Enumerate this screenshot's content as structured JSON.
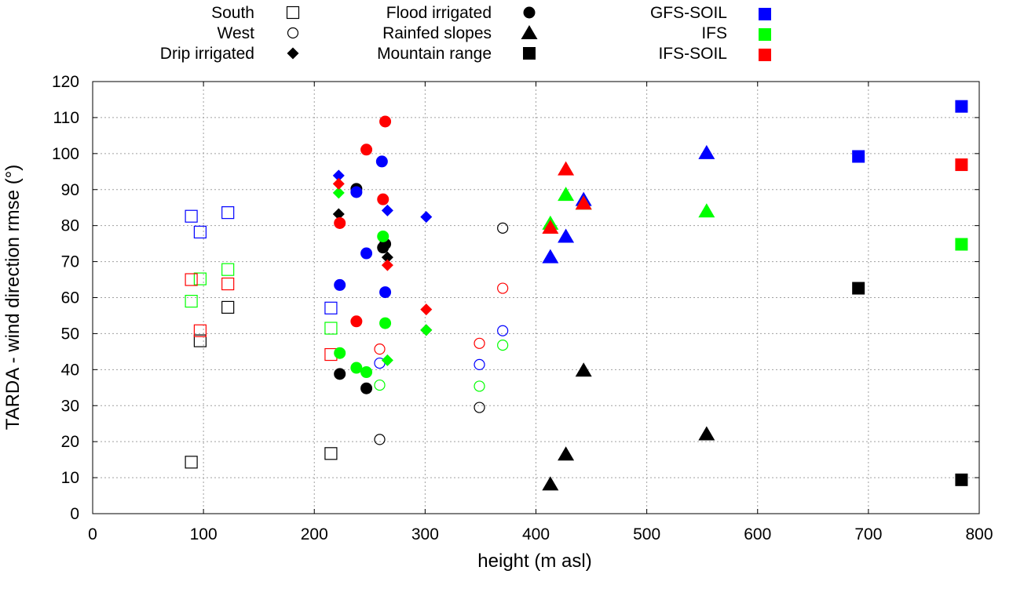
{
  "chart_data": {
    "type": "scatter",
    "xlabel": "height (m asl)",
    "ylabel": "TARDA - wind direction rmse (°)",
    "xlim": [
      0,
      800
    ],
    "ylim": [
      0,
      120
    ],
    "xticks": [
      0,
      100,
      200,
      300,
      400,
      500,
      600,
      700,
      800
    ],
    "yticks": [
      0,
      10,
      20,
      30,
      40,
      50,
      60,
      70,
      80,
      90,
      100,
      110,
      120
    ],
    "grid": true,
    "shape_legend": [
      {
        "label": "South",
        "marker": "open-square"
      },
      {
        "label": "West",
        "marker": "open-circle"
      },
      {
        "label": "Drip irrigated",
        "marker": "diamond"
      },
      {
        "label": "Flood irrigated",
        "marker": "circle"
      },
      {
        "label": "Rainfed slopes",
        "marker": "triangle"
      },
      {
        "label": "Mountain range",
        "marker": "square"
      }
    ],
    "color_legend": [
      {
        "label": "GFS-SOIL",
        "color": "#0000ff"
      },
      {
        "label": "IFS",
        "color": "#00ff00"
      },
      {
        "label": "IFS-SOIL",
        "color": "#ff0000"
      }
    ],
    "series": [
      {
        "name": "South - TARDA",
        "marker": "open-square",
        "color": "#000000",
        "points": [
          [
            89,
            14.3
          ],
          [
            97,
            48
          ],
          [
            122,
            57.3
          ],
          [
            215,
            16.7
          ]
        ]
      },
      {
        "name": "South - GFS-SOIL",
        "marker": "open-square",
        "color": "#0000ff",
        "points": [
          [
            89,
            82.6
          ],
          [
            97,
            78.2
          ],
          [
            122,
            83.6
          ],
          [
            215,
            57.1
          ]
        ]
      },
      {
        "name": "South - IFS",
        "marker": "open-square",
        "color": "#00ff00",
        "points": [
          [
            89,
            59
          ],
          [
            97,
            65.2
          ],
          [
            122,
            67.8
          ],
          [
            215,
            51.5
          ]
        ]
      },
      {
        "name": "South - IFS-SOIL",
        "marker": "open-square",
        "color": "#ff0000",
        "points": [
          [
            89,
            65
          ],
          [
            97,
            50.8
          ],
          [
            122,
            63.8
          ],
          [
            215,
            44.2
          ]
        ]
      },
      {
        "name": "West - TARDA",
        "marker": "open-circle",
        "color": "#000000",
        "points": [
          [
            259,
            20.6
          ],
          [
            349,
            29.5
          ],
          [
            370,
            79.3
          ]
        ]
      },
      {
        "name": "West - GFS-SOIL",
        "marker": "open-circle",
        "color": "#0000ff",
        "points": [
          [
            259,
            41.8
          ],
          [
            349,
            41.4
          ],
          [
            370,
            50.8
          ]
        ]
      },
      {
        "name": "West - IFS",
        "marker": "open-circle",
        "color": "#00ff00",
        "points": [
          [
            259,
            35.7
          ],
          [
            349,
            35.4
          ],
          [
            370,
            46.8
          ]
        ]
      },
      {
        "name": "West - IFS-SOIL",
        "marker": "open-circle",
        "color": "#ff0000",
        "points": [
          [
            259,
            45.7
          ],
          [
            349,
            47.3
          ],
          [
            370,
            62.6
          ]
        ]
      },
      {
        "name": "Drip irrigated - TARDA",
        "marker": "diamond",
        "color": "#000000",
        "points": [
          [
            222,
            83.2
          ],
          [
            266,
            71.2
          ],
          [
            301,
            51
          ]
        ]
      },
      {
        "name": "Drip irrigated - GFS-SOIL",
        "marker": "diamond",
        "color": "#0000ff",
        "points": [
          [
            222,
            93.9
          ],
          [
            266,
            84.2
          ],
          [
            301,
            82.4
          ]
        ]
      },
      {
        "name": "Drip irrigated - IFS",
        "marker": "diamond",
        "color": "#00ff00",
        "points": [
          [
            222,
            89.1
          ],
          [
            266,
            42.6
          ],
          [
            301,
            51
          ]
        ]
      },
      {
        "name": "Drip irrigated - IFS-SOIL",
        "marker": "diamond",
        "color": "#ff0000",
        "points": [
          [
            222,
            91.6
          ],
          [
            266,
            69
          ],
          [
            301,
            56.7
          ]
        ]
      },
      {
        "name": "Flood irrigated - TARDA",
        "marker": "circle",
        "color": "#000000",
        "points": [
          [
            223,
            38.8
          ],
          [
            238,
            90.2
          ],
          [
            247,
            34.8
          ],
          [
            262,
            73.9
          ],
          [
            264,
            74.9
          ]
        ]
      },
      {
        "name": "Flood irrigated - GFS-SOIL",
        "marker": "circle",
        "color": "#0000ff",
        "points": [
          [
            223,
            63.5
          ],
          [
            238,
            89.3
          ],
          [
            247,
            72.3
          ],
          [
            261,
            97.8
          ],
          [
            264,
            61.5
          ]
        ]
      },
      {
        "name": "Flood irrigated - IFS",
        "marker": "circle",
        "color": "#00ff00",
        "points": [
          [
            223,
            44.6
          ],
          [
            238,
            40.5
          ],
          [
            247,
            39.3
          ],
          [
            262,
            77
          ],
          [
            264,
            52.9
          ]
        ]
      },
      {
        "name": "Flood irrigated - IFS-SOIL",
        "marker": "circle",
        "color": "#ff0000",
        "points": [
          [
            223,
            80.7
          ],
          [
            238,
            53.4
          ],
          [
            247,
            101.1
          ],
          [
            262,
            87.3
          ],
          [
            264,
            108.9
          ]
        ]
      },
      {
        "name": "Rainfed slopes - TARDA",
        "marker": "triangle",
        "color": "#000000",
        "points": [
          [
            413,
            8.2
          ],
          [
            427,
            16.5
          ],
          [
            443,
            39.8
          ],
          [
            554,
            22.1
          ]
        ]
      },
      {
        "name": "Rainfed slopes - GFS-SOIL",
        "marker": "triangle",
        "color": "#0000ff",
        "points": [
          [
            413,
            71.3
          ],
          [
            427,
            77
          ],
          [
            443,
            87.2
          ],
          [
            554,
            100.2
          ]
        ]
      },
      {
        "name": "Rainfed slopes - IFS",
        "marker": "triangle",
        "color": "#00ff00",
        "points": [
          [
            413,
            80.6
          ],
          [
            427,
            88.6
          ],
          [
            443,
            86.2
          ],
          [
            554,
            84
          ]
        ]
      },
      {
        "name": "Rainfed slopes - IFS-SOIL",
        "marker": "triangle",
        "color": "#ff0000",
        "points": [
          [
            413,
            79.5
          ],
          [
            427,
            95.7
          ],
          [
            443,
            86.2
          ]
        ]
      },
      {
        "name": "Mountain range - TARDA",
        "marker": "square",
        "color": "#000000",
        "points": [
          [
            691,
            62.6
          ],
          [
            784,
            9.4
          ]
        ]
      },
      {
        "name": "Mountain range - GFS-SOIL",
        "marker": "square",
        "color": "#0000ff",
        "points": [
          [
            691,
            99.2
          ],
          [
            784,
            113.1
          ]
        ]
      },
      {
        "name": "Mountain range - IFS",
        "marker": "square",
        "color": "#00ff00",
        "points": [
          [
            784,
            74.8
          ]
        ]
      },
      {
        "name": "Mountain range - IFS-SOIL",
        "marker": "square",
        "color": "#ff0000",
        "points": [
          [
            784,
            96.9
          ]
        ]
      }
    ]
  }
}
